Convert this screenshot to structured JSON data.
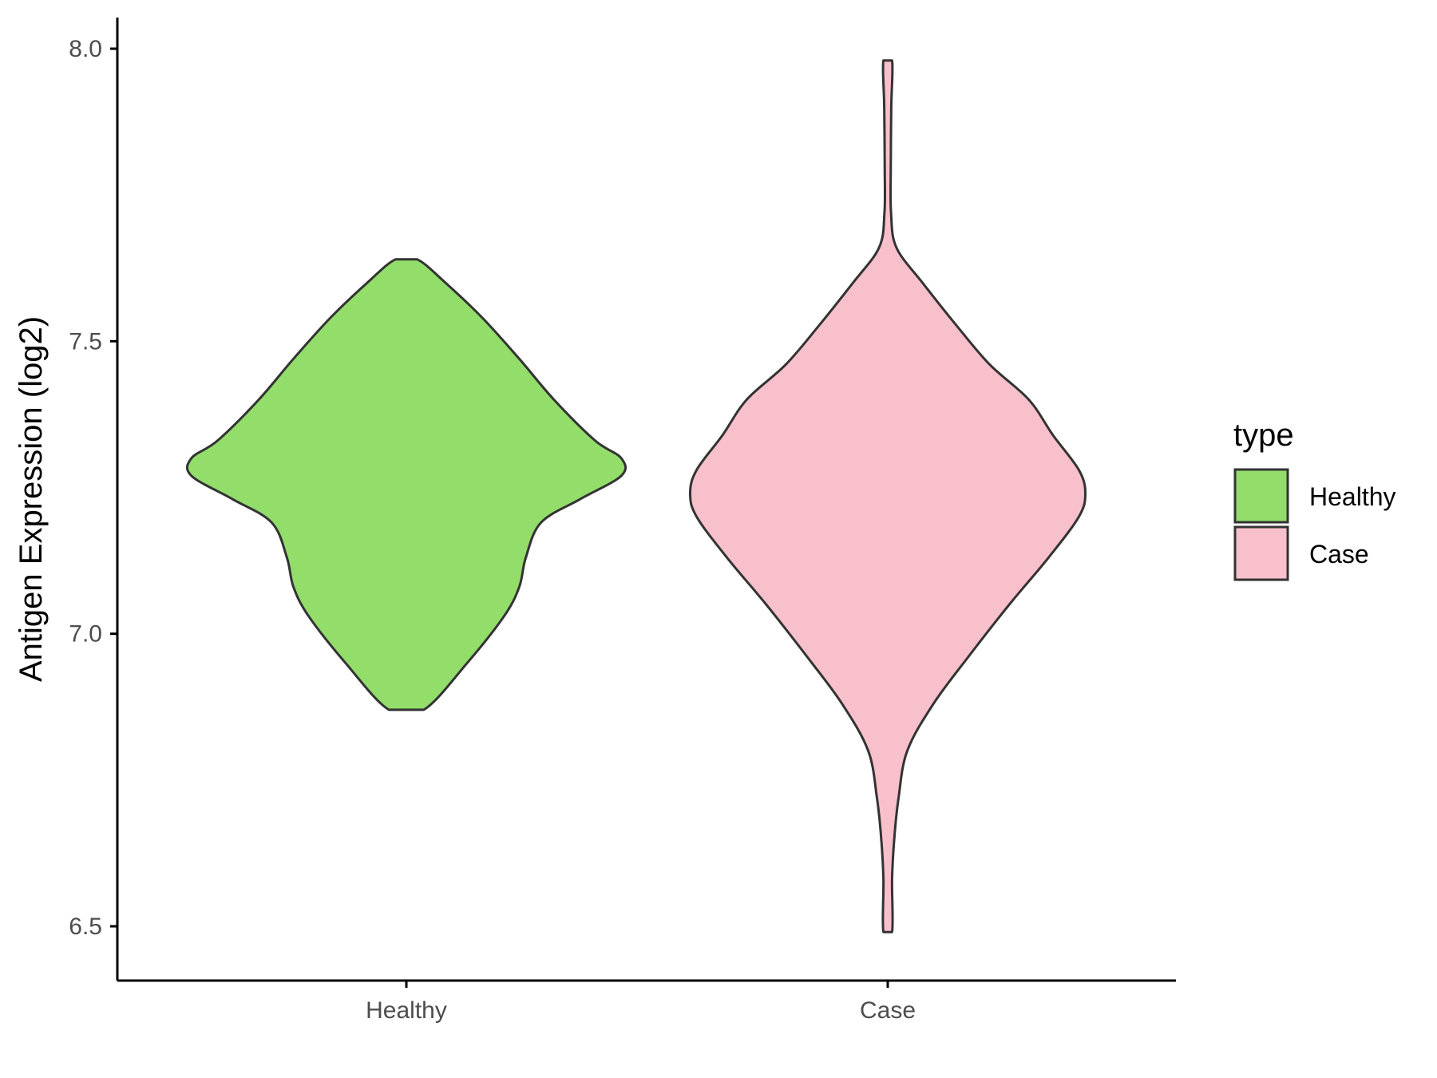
{
  "chart_data": {
    "type": "violin",
    "title": "",
    "xlabel": "",
    "ylabel": "Antigen Expression (log2)",
    "ylim": [
      6.45,
      8.05
    ],
    "yticks": [
      6.5,
      7.0,
      7.5,
      8.0
    ],
    "ytick_labels": [
      "6.5",
      "7.0",
      "7.5",
      "8.0"
    ],
    "categories": [
      "Healthy",
      "Case"
    ],
    "grid": false,
    "legend": {
      "title": "type",
      "position": "right",
      "entries": [
        "Healthy",
        "Case"
      ]
    },
    "series": [
      {
        "name": "Healthy",
        "color": "#93dd6b",
        "min": 6.87,
        "max": 7.64,
        "profile": [
          [
            6.87,
            0.08
          ],
          [
            6.95,
            0.28
          ],
          [
            7.03,
            0.45
          ],
          [
            7.08,
            0.52
          ],
          [
            7.13,
            0.55
          ],
          [
            7.19,
            0.62
          ],
          [
            7.23,
            0.8
          ],
          [
            7.27,
            0.99
          ],
          [
            7.3,
            0.99
          ],
          [
            7.33,
            0.87
          ],
          [
            7.4,
            0.68
          ],
          [
            7.47,
            0.52
          ],
          [
            7.54,
            0.35
          ],
          [
            7.6,
            0.18
          ],
          [
            7.64,
            0.05
          ]
        ]
      },
      {
        "name": "Case",
        "color": "#f8c0cb",
        "min": 6.49,
        "max": 7.98,
        "profile": [
          [
            6.49,
            0.02
          ],
          [
            6.58,
            0.02
          ],
          [
            6.65,
            0.03
          ],
          [
            6.72,
            0.05
          ],
          [
            6.8,
            0.09
          ],
          [
            6.88,
            0.21
          ],
          [
            6.96,
            0.37
          ],
          [
            7.05,
            0.56
          ],
          [
            7.13,
            0.74
          ],
          [
            7.2,
            0.88
          ],
          [
            7.24,
            0.91
          ],
          [
            7.28,
            0.88
          ],
          [
            7.34,
            0.76
          ],
          [
            7.4,
            0.65
          ],
          [
            7.46,
            0.47
          ],
          [
            7.53,
            0.31
          ],
          [
            7.6,
            0.16
          ],
          [
            7.66,
            0.04
          ],
          [
            7.72,
            0.015
          ],
          [
            7.8,
            0.014
          ],
          [
            7.9,
            0.016
          ],
          [
            7.98,
            0.02
          ]
        ]
      }
    ]
  }
}
